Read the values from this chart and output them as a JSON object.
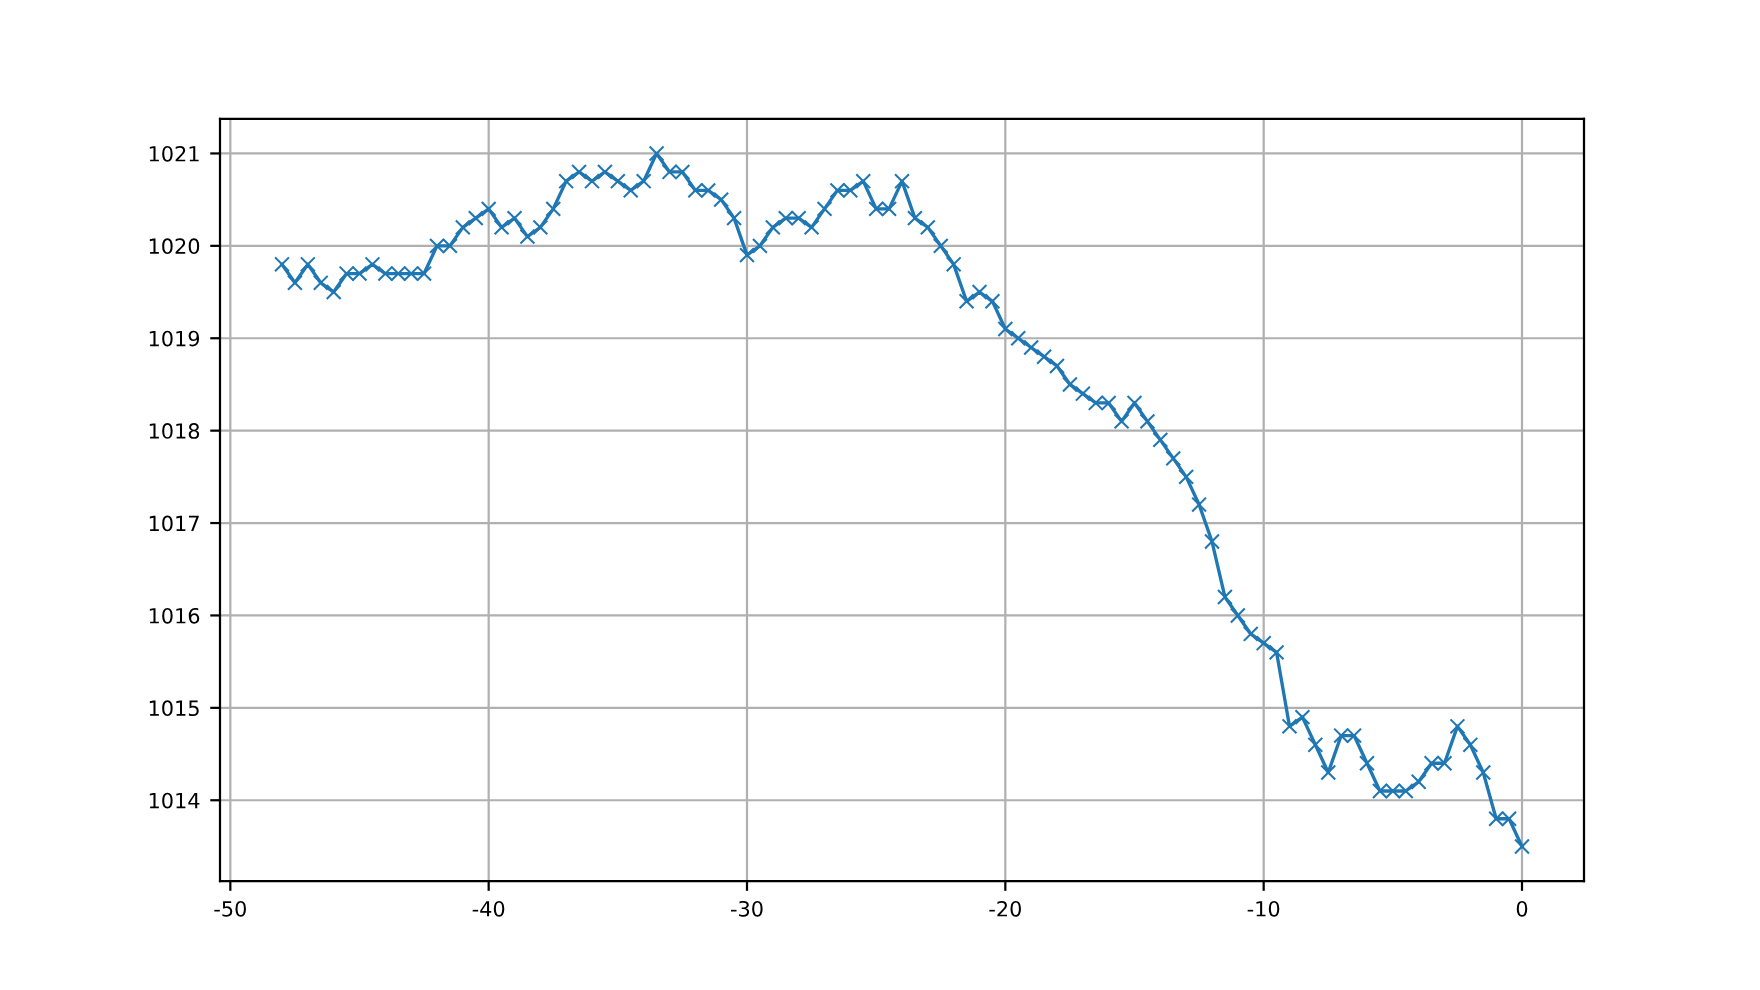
{
  "chart_data": {
    "type": "line",
    "x": [
      -48,
      -47.5,
      -47,
      -46.5,
      -46,
      -45.5,
      -45,
      -44.5,
      -44,
      -43.5,
      -43,
      -42.5,
      -42,
      -41.5,
      -41,
      -40.5,
      -40,
      -39.5,
      -39,
      -38.5,
      -38,
      -37.5,
      -37,
      -36.5,
      -36,
      -35.5,
      -35,
      -34.5,
      -34,
      -33.5,
      -33,
      -32.5,
      -32,
      -31.5,
      -31,
      -30.5,
      -30,
      -29.5,
      -29,
      -28.5,
      -28,
      -27.5,
      -27,
      -26.5,
      -26,
      -25.5,
      -25,
      -24.5,
      -24,
      -23.5,
      -23,
      -22.5,
      -22,
      -21.5,
      -21,
      -20.5,
      -20,
      -19.5,
      -19,
      -18.5,
      -18,
      -17.5,
      -17,
      -16.5,
      -16,
      -15.5,
      -15,
      -14.5,
      -14,
      -13.5,
      -13,
      -12.5,
      -12,
      -11.5,
      -11,
      -10.5,
      -10,
      -9.5,
      -9,
      -8.5,
      -8,
      -7.5,
      -7,
      -6.5,
      -6,
      -5.5,
      -5,
      -4.5,
      -4,
      -3.5,
      -3,
      -2.5,
      -2,
      -1.5,
      -1,
      -0.5,
      0
    ],
    "series": [
      {
        "color": "#1f77b4",
        "values": [
          1019.8,
          1019.6,
          1019.8,
          1019.6,
          1019.5,
          1019.7,
          1019.7,
          1019.8,
          1019.7,
          1019.7,
          1019.7,
          1019.7,
          1020.0,
          1020.0,
          1020.2,
          1020.3,
          1020.4,
          1020.2,
          1020.3,
          1020.1,
          1020.2,
          1020.4,
          1020.7,
          1020.8,
          1020.7,
          1020.8,
          1020.7,
          1020.6,
          1020.7,
          1021.0,
          1020.8,
          1020.8,
          1020.6,
          1020.6,
          1020.5,
          1020.3,
          1019.9,
          1020.0,
          1020.2,
          1020.3,
          1020.3,
          1020.2,
          1020.4,
          1020.6,
          1020.6,
          1020.7,
          1020.4,
          1020.4,
          1020.7,
          1020.3,
          1020.2,
          1020.0,
          1019.8,
          1019.4,
          1019.5,
          1019.4,
          1019.1,
          1019.0,
          1018.9,
          1018.8,
          1018.7,
          1018.5,
          1018.4,
          1018.3,
          1018.3,
          1018.1,
          1018.3,
          1018.1,
          1017.9,
          1017.7,
          1017.5,
          1017.2,
          1016.8,
          1016.2,
          1016.0,
          1015.8,
          1015.7,
          1015.6,
          1014.8,
          1014.9,
          1014.6,
          1014.3,
          1014.7,
          1014.7,
          1014.4,
          1014.1,
          1014.1,
          1014.1,
          1014.2,
          1014.4,
          1014.4,
          1014.8,
          1014.6,
          1014.3,
          1013.8,
          1013.8,
          1013.5
        ]
      }
    ],
    "xlim": [
      -50.4,
      2.4
    ],
    "xticks": [
      -50,
      -40,
      -30,
      -20,
      -10,
      0
    ],
    "ylim": [
      1013.125,
      1021.375
    ],
    "yticks": [
      1014,
      1015,
      1016,
      1017,
      1018,
      1019,
      1020,
      1021
    ],
    "grid": true,
    "marker": "cross",
    "line_style": "solid"
  }
}
